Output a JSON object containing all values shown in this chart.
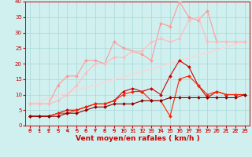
{
  "bg_color": "#d0efef",
  "grid_color": "#a8d8d8",
  "xlabel": "Vent moyen/en rafales ( km/h )",
  "xlim": [
    -0.5,
    23.5
  ],
  "ylim": [
    0,
    40
  ],
  "xticks": [
    0,
    1,
    2,
    3,
    4,
    5,
    6,
    7,
    8,
    9,
    10,
    11,
    12,
    13,
    14,
    15,
    16,
    17,
    18,
    19,
    20,
    21,
    22,
    23
  ],
  "yticks": [
    0,
    5,
    10,
    15,
    20,
    25,
    30,
    35,
    40
  ],
  "series": [
    {
      "color": "#ff9999",
      "marker": "D",
      "markersize": 2.0,
      "linewidth": 0.8,
      "x": [
        0,
        1,
        2,
        3,
        4,
        5,
        6,
        7,
        8,
        9,
        10,
        11,
        12,
        13,
        14,
        15,
        16,
        17,
        18,
        19,
        20,
        21,
        22,
        23
      ],
      "y": [
        7,
        7,
        7,
        13,
        16,
        16,
        21,
        21,
        20,
        27,
        25,
        24,
        23,
        21,
        33,
        32,
        40,
        35,
        34,
        37,
        27,
        27,
        27,
        27
      ]
    },
    {
      "color": "#ffbbbb",
      "marker": "D",
      "markersize": 2.0,
      "linewidth": 0.8,
      "x": [
        0,
        1,
        2,
        3,
        4,
        5,
        6,
        7,
        8,
        9,
        10,
        11,
        12,
        13,
        14,
        15,
        16,
        17,
        18,
        19,
        20,
        21,
        22,
        23
      ],
      "y": [
        7,
        7,
        7,
        8,
        10,
        13,
        17,
        20,
        20,
        22,
        22,
        24,
        24,
        27,
        28,
        27,
        28,
        34,
        35,
        27,
        27,
        27,
        27,
        27
      ]
    },
    {
      "color": "#ffcccc",
      "marker": null,
      "linewidth": 0.8,
      "x": [
        0,
        23
      ],
      "y": [
        7,
        27
      ]
    },
    {
      "color": "#ffd8d8",
      "marker": null,
      "linewidth": 0.8,
      "x": [
        0,
        23
      ],
      "y": [
        7,
        27
      ]
    },
    {
      "color": "#cc0000",
      "marker": "D",
      "markersize": 2.0,
      "linewidth": 0.8,
      "x": [
        0,
        1,
        2,
        3,
        4,
        5,
        6,
        7,
        8,
        9,
        10,
        11,
        12,
        13,
        14,
        15,
        16,
        17,
        18,
        19,
        20,
        21,
        22,
        23
      ],
      "y": [
        3,
        3,
        3,
        4,
        5,
        5,
        6,
        7,
        7,
        8,
        11,
        12,
        11,
        12,
        10,
        16,
        21,
        19,
        13,
        9,
        11,
        10,
        10,
        10
      ]
    },
    {
      "color": "#ff2200",
      "marker": "D",
      "markersize": 2.0,
      "linewidth": 0.8,
      "x": [
        0,
        1,
        2,
        3,
        4,
        5,
        6,
        7,
        8,
        9,
        10,
        11,
        12,
        13,
        14,
        15,
        16,
        17,
        18,
        19,
        20,
        21,
        22,
        23
      ],
      "y": [
        3,
        3,
        3,
        4,
        4,
        5,
        6,
        7,
        7,
        8,
        10,
        11,
        11,
        8,
        8,
        3,
        15,
        16,
        13,
        10,
        11,
        10,
        10,
        10
      ]
    },
    {
      "color": "#880000",
      "marker": "D",
      "markersize": 2.0,
      "linewidth": 0.8,
      "x": [
        0,
        1,
        2,
        3,
        4,
        5,
        6,
        7,
        8,
        9,
        10,
        11,
        12,
        13,
        14,
        15,
        16,
        17,
        18,
        19,
        20,
        21,
        22,
        23
      ],
      "y": [
        3,
        3,
        3,
        3,
        4,
        4,
        5,
        6,
        6,
        7,
        7,
        7,
        8,
        8,
        8,
        9,
        9,
        9,
        9,
        9,
        9,
        9,
        9,
        10
      ]
    }
  ],
  "tick_fontsize": 5.0,
  "xlabel_fontsize": 6.5,
  "arrow_directions": [
    225,
    225,
    210,
    210,
    200,
    200,
    195,
    190,
    185,
    180,
    175,
    170,
    165,
    160,
    155,
    150,
    145,
    10,
    15,
    20,
    25,
    30,
    35,
    40
  ]
}
